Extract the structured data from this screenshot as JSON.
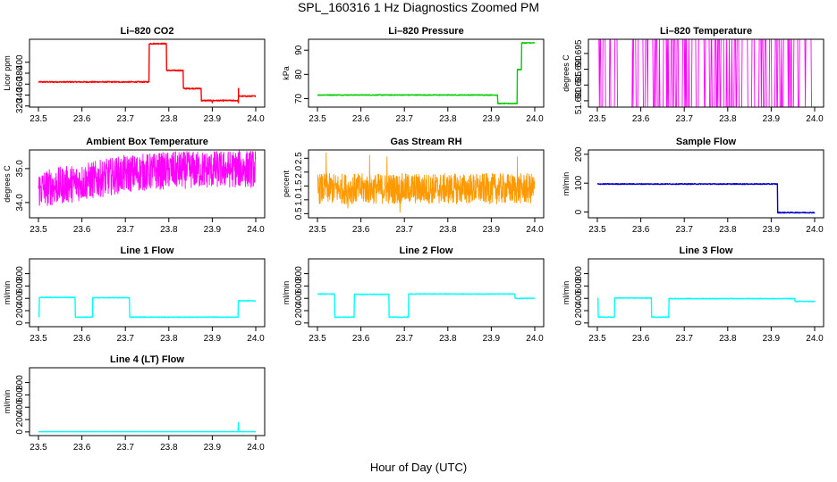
{
  "page": {
    "title": "SPL_160316  1 Hz Diagnostics Zoomed PM",
    "xlabel": "Hour of Day (UTC)"
  },
  "chart_data": [
    {
      "type": "line",
      "title": "Li–820 CO2",
      "ylabel": "Licor ppm",
      "color": "#ff0000",
      "x_ticks": [
        23.5,
        23.6,
        23.7,
        23.8,
        23.9,
        24.0
      ],
      "x_tick_labels": [
        "23.5",
        "23.6",
        "23.7",
        "23.8",
        "23.9",
        "24.0"
      ],
      "y_ticks": [
        320,
        340,
        360,
        380,
        400
      ],
      "y_tick_labels": [
        "320",
        "340",
        "360",
        "380",
        "400"
      ],
      "xlim": [
        23.5,
        24.0
      ],
      "ylim": [
        318,
        442
      ],
      "segments": [
        [
          23.5,
          23.755,
          364
        ],
        [
          23.755,
          23.795,
          434
        ],
        [
          23.795,
          23.833,
          385
        ],
        [
          23.833,
          23.875,
          352
        ],
        [
          23.875,
          23.96,
          330
        ],
        [
          23.96,
          24.0,
          338
        ]
      ],
      "noise": 1.0,
      "spikes": [
        [
          23.96,
          352
        ],
        [
          23.96,
          326
        ],
        [
          23.9,
          326
        ]
      ]
    },
    {
      "type": "line",
      "title": "Li–820 Pressure",
      "ylabel": "kPa",
      "color": "#00cc00",
      "x_ticks": [
        23.5,
        23.6,
        23.7,
        23.8,
        23.9,
        24.0
      ],
      "x_tick_labels": [
        "23.5",
        "23.6",
        "23.7",
        "23.8",
        "23.9",
        "24.0"
      ],
      "y_ticks": [
        70,
        80,
        90
      ],
      "y_tick_labels": [
        "70",
        "80",
        "90"
      ],
      "xlim": [
        23.5,
        24.0
      ],
      "ylim": [
        66.5,
        94.5
      ],
      "segments": [
        [
          23.5,
          23.915,
          71.5
        ],
        [
          23.915,
          23.96,
          68.0
        ],
        [
          23.96,
          23.97,
          82.0
        ],
        [
          23.97,
          24.0,
          93.0
        ]
      ],
      "noise": 0.15,
      "spikes": []
    },
    {
      "type": "line",
      "title": "Li–820 Temperature",
      "ylabel": "degrees C",
      "color": "#ff00ff",
      "x_ticks": [
        23.5,
        23.6,
        23.7,
        23.8,
        23.9,
        24.0
      ],
      "x_tick_labels": [
        "23.5",
        "23.6",
        "23.7",
        "23.8",
        "23.9",
        "24.0"
      ],
      "y_ticks": [
        51.68,
        51.685,
        51.69,
        51.695
      ],
      "y_tick_labels": [
        "51.680",
        "51.685",
        "51.690",
        "51.695"
      ],
      "xlim": [
        23.5,
        24.0
      ],
      "ylim": [
        51.678,
        51.6995
      ],
      "pattern": "binary",
      "levels": [
        51.678,
        51.6995
      ],
      "density": 0.25
    },
    {
      "type": "line",
      "title": "Ambient Box Temperature",
      "ylabel": "degrees C",
      "color": "#ff00ff",
      "x_ticks": [
        23.5,
        23.6,
        23.7,
        23.8,
        23.9,
        24.0
      ],
      "x_tick_labels": [
        "23.5",
        "23.6",
        "23.7",
        "23.8",
        "23.9",
        "24.0"
      ],
      "y_ticks": [
        34.0,
        35.0
      ],
      "y_tick_labels": [
        "34.0",
        "35.0"
      ],
      "xlim": [
        23.5,
        24.0
      ],
      "ylim": [
        33.55,
        35.55
      ],
      "pattern": "noisy",
      "trend": [
        [
          23.5,
          34.4
        ],
        [
          23.6,
          34.6
        ],
        [
          23.7,
          34.85
        ],
        [
          23.8,
          34.95
        ],
        [
          24.0,
          35.0
        ]
      ],
      "noise": 0.55
    },
    {
      "type": "line",
      "title": "Gas Stream RH",
      "ylabel": "percent",
      "color": "#ff9900",
      "x_ticks": [
        23.5,
        23.6,
        23.7,
        23.8,
        23.9,
        24.0
      ],
      "x_tick_labels": [
        "23.5",
        "23.6",
        "23.7",
        "23.8",
        "23.9",
        "24.0"
      ],
      "y_ticks": [
        0.5,
        1.0,
        1.5,
        2.0,
        2.5
      ],
      "y_tick_labels": [
        "0.5",
        "1.0",
        "1.5",
        "2.0",
        "2.5"
      ],
      "xlim": [
        23.5,
        24.0
      ],
      "ylim": [
        0.35,
        2.8
      ],
      "pattern": "noisy",
      "trend": [
        [
          23.5,
          1.4
        ],
        [
          24.0,
          1.4
        ]
      ],
      "noise": 0.55,
      "extra_spikes": [
        [
          23.52,
          2.7
        ],
        [
          23.62,
          2.6
        ],
        [
          23.66,
          2.55
        ],
        [
          23.96,
          2.55
        ],
        [
          23.69,
          0.55
        ],
        [
          23.57,
          0.7
        ]
      ]
    },
    {
      "type": "line",
      "title": "Sample Flow",
      "ylabel": "ml/min",
      "color": "#0000cc",
      "x_ticks": [
        23.5,
        23.6,
        23.7,
        23.8,
        23.9,
        24.0
      ],
      "x_tick_labels": [
        "23.5",
        "23.6",
        "23.7",
        "23.8",
        "23.9",
        "24.0"
      ],
      "y_ticks": [
        0,
        100,
        200
      ],
      "y_tick_labels": [
        "0",
        "100",
        "200"
      ],
      "xlim": [
        23.5,
        24.0
      ],
      "ylim": [
        -20,
        215
      ],
      "segments": [
        [
          23.5,
          23.915,
          97
        ],
        [
          23.915,
          24.0,
          -2
        ]
      ],
      "noise": 1.5,
      "spikes": []
    },
    {
      "type": "line",
      "title": "Line 1 Flow",
      "ylabel": "ml/min",
      "color": "#00ffff",
      "x_ticks": [
        23.5,
        23.6,
        23.7,
        23.8,
        23.9,
        24.0
      ],
      "x_tick_labels": [
        "23.5",
        "23.6",
        "23.7",
        "23.8",
        "23.9",
        "24.0"
      ],
      "y_ticks": [
        0,
        200,
        400,
        600,
        800
      ],
      "y_tick_labels": [
        "0",
        "200",
        "400",
        "600",
        "800"
      ],
      "xlim": [
        23.5,
        24.0
      ],
      "ylim": [
        -60,
        1040
      ],
      "segments": [
        [
          23.5,
          23.502,
          100
        ],
        [
          23.502,
          23.585,
          415
        ],
        [
          23.585,
          23.625,
          95
        ],
        [
          23.625,
          23.71,
          410
        ],
        [
          23.71,
          23.96,
          95
        ],
        [
          23.96,
          24.0,
          360
        ]
      ],
      "noise": 5,
      "spikes": []
    },
    {
      "type": "line",
      "title": "Line 2 Flow",
      "ylabel": "ml/min",
      "color": "#00ffff",
      "x_ticks": [
        23.5,
        23.6,
        23.7,
        23.8,
        23.9,
        24.0
      ],
      "x_tick_labels": [
        "23.5",
        "23.6",
        "23.7",
        "23.8",
        "23.9",
        "24.0"
      ],
      "y_ticks": [
        0,
        200,
        400,
        600,
        800
      ],
      "y_tick_labels": [
        "0",
        "200",
        "400",
        "600",
        "800"
      ],
      "xlim": [
        23.5,
        24.0
      ],
      "ylim": [
        -60,
        1040
      ],
      "segments": [
        [
          23.5,
          23.54,
          470
        ],
        [
          23.54,
          23.585,
          95
        ],
        [
          23.585,
          23.665,
          465
        ],
        [
          23.665,
          23.71,
          95
        ],
        [
          23.71,
          23.955,
          470
        ],
        [
          23.955,
          24.0,
          400
        ]
      ],
      "noise": 5,
      "spikes": []
    },
    {
      "type": "line",
      "title": "Line 3 Flow",
      "ylabel": "ml/min",
      "color": "#00ffff",
      "x_ticks": [
        23.5,
        23.6,
        23.7,
        23.8,
        23.9,
        24.0
      ],
      "x_tick_labels": [
        "23.5",
        "23.6",
        "23.7",
        "23.8",
        "23.9",
        "24.0"
      ],
      "y_ticks": [
        0,
        200,
        400,
        600,
        800
      ],
      "y_tick_labels": [
        "0",
        "200",
        "400",
        "600",
        "800"
      ],
      "xlim": [
        23.5,
        24.0
      ],
      "ylim": [
        -60,
        1040
      ],
      "segments": [
        [
          23.5,
          23.502,
          400
        ],
        [
          23.502,
          23.54,
          95
        ],
        [
          23.54,
          23.625,
          405
        ],
        [
          23.625,
          23.665,
          95
        ],
        [
          23.665,
          23.955,
          395
        ],
        [
          23.955,
          24.0,
          350
        ]
      ],
      "noise": 5,
      "spikes": []
    },
    {
      "type": "line",
      "title": "Line 4 (LT) Flow",
      "ylabel": "ml/min",
      "color": "#00ffff",
      "x_ticks": [
        23.5,
        23.6,
        23.7,
        23.8,
        23.9,
        24.0
      ],
      "x_tick_labels": [
        "23.5",
        "23.6",
        "23.7",
        "23.8",
        "23.9",
        "24.0"
      ],
      "y_ticks": [
        0,
        200,
        400,
        600,
        800
      ],
      "y_tick_labels": [
        "0",
        "200",
        "400",
        "600",
        "800"
      ],
      "xlim": [
        23.5,
        24.0
      ],
      "ylim": [
        -60,
        1040
      ],
      "segments": [
        [
          23.5,
          24.0,
          3
        ]
      ],
      "noise": 1,
      "spikes": [
        [
          23.96,
          150
        ]
      ]
    }
  ]
}
